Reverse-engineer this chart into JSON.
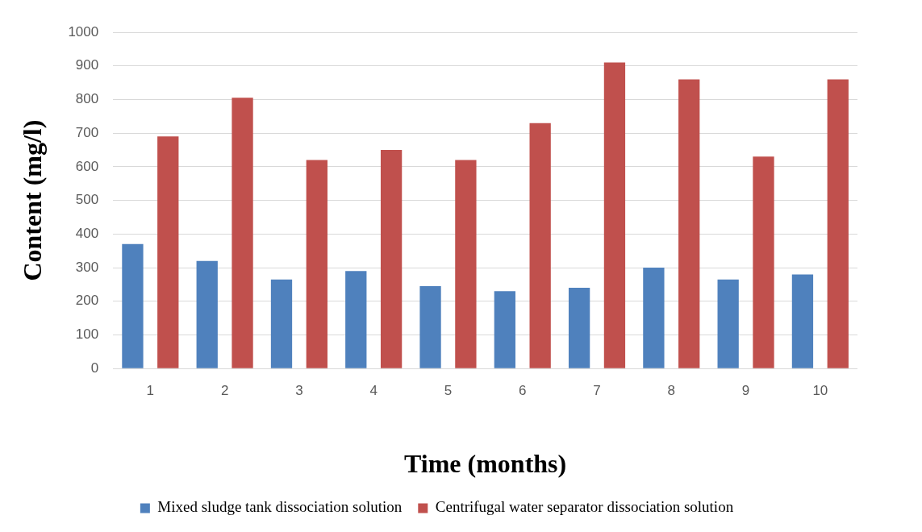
{
  "chart_data": {
    "type": "bar",
    "xlabel": "Time (months)",
    "ylabel": "Content (mg/l)",
    "categories": [
      "1",
      "2",
      "3",
      "4",
      "5",
      "6",
      "7",
      "8",
      "9",
      "10"
    ],
    "series": [
      {
        "name": "Mixed sludge tank dissociation solution",
        "color": "#4f81bd",
        "values": [
          370,
          320,
          265,
          290,
          245,
          230,
          240,
          300,
          265,
          280
        ]
      },
      {
        "name": "Centrifugal water separator dissociation solution",
        "color": "#c0504d",
        "values": [
          690,
          805,
          620,
          650,
          620,
          730,
          910,
          860,
          630,
          860
        ]
      }
    ],
    "ylim": [
      0,
      1000
    ],
    "yticks": [
      0,
      100,
      200,
      300,
      400,
      500,
      600,
      700,
      800,
      900,
      1000
    ],
    "grid": "y",
    "legend": "bottom"
  }
}
